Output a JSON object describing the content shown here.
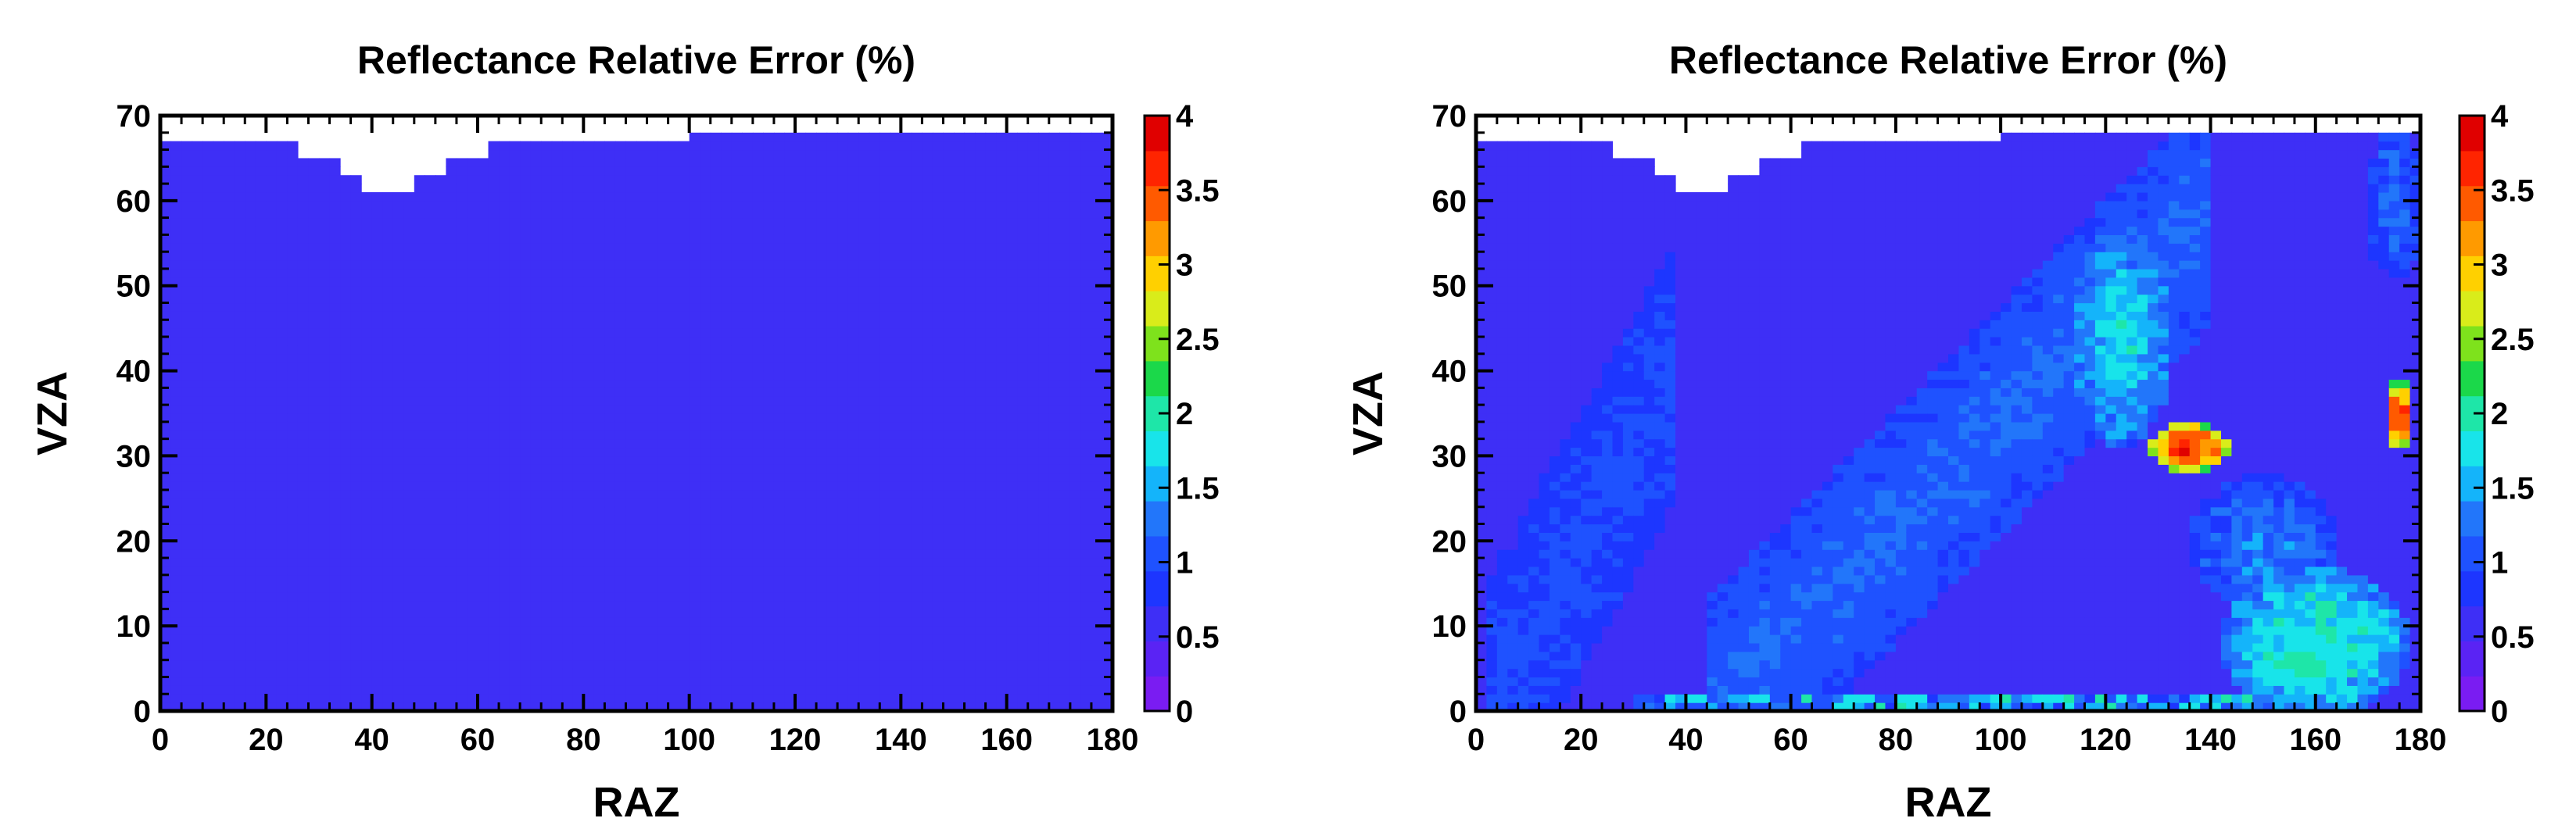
{
  "palette": [
    "#7a1cf2",
    "#5a23f4",
    "#3e2ff6",
    "#1d36ff",
    "#1f52ff",
    "#2276fa",
    "#14b4fa",
    "#18e4ea",
    "#1ee6a8",
    "#1bd84a",
    "#7ee21c",
    "#d9ec1a",
    "#ffd000",
    "#ff9a00",
    "#ff5a00",
    "#ff2400",
    "#e00000"
  ],
  "chart_data": [
    {
      "type": "heatmap",
      "title": "Reflectance Relative Error (%)",
      "xlabel": "RAZ",
      "ylabel": "VZA",
      "xlim": [
        0,
        180
      ],
      "ylim": [
        0,
        70
      ],
      "x_ticks": [
        "0",
        "20",
        "40",
        "60",
        "80",
        "100",
        "120",
        "140",
        "160",
        "180"
      ],
      "y_ticks": [
        "0",
        "10",
        "20",
        "30",
        "40",
        "50",
        "60",
        "70"
      ],
      "colorbar": {
        "range": [
          0,
          4
        ],
        "ticks": [
          "0",
          "0.5",
          "1",
          "1.5",
          "2",
          "2.5",
          "3",
          "3.5",
          "4"
        ]
      },
      "cell_size": [
        2,
        1
      ],
      "field": "uniform",
      "base_value": 0.65,
      "no_data_regions": [
        {
          "raz": [
            0,
            100
          ],
          "vza_above": 67
        },
        {
          "raz": [
            26,
            34
          ],
          "vza_above": 65
        },
        {
          "raz": [
            34,
            38
          ],
          "vza_above": 63
        },
        {
          "raz": [
            38,
            48
          ],
          "vza_above": 61
        },
        {
          "raz": [
            48,
            54
          ],
          "vza_above": 63
        },
        {
          "raz": [
            54,
            62
          ],
          "vza_above": 65
        },
        {
          "raz": [
            100,
            180
          ],
          "vza_above": 68
        }
      ]
    },
    {
      "type": "heatmap",
      "title": "Reflectance Relative Error (%)",
      "xlabel": "RAZ",
      "ylabel": "VZA",
      "xlim": [
        0,
        180
      ],
      "ylim": [
        0,
        70
      ],
      "x_ticks": [
        "0",
        "20",
        "40",
        "60",
        "80",
        "100",
        "120",
        "140",
        "160",
        "180"
      ],
      "y_ticks": [
        "0",
        "10",
        "20",
        "30",
        "40",
        "50",
        "60",
        "70"
      ],
      "colorbar": {
        "range": [
          0,
          4
        ],
        "ticks": [
          "0",
          "0.5",
          "1",
          "1.5",
          "2",
          "2.5",
          "3",
          "3.5",
          "4"
        ]
      },
      "cell_size": [
        2,
        1
      ],
      "field": "structured",
      "base_value": 0.65,
      "features": [
        {
          "kind": "band",
          "value": 1.05,
          "from_raz": 2,
          "to_raz": 38,
          "slope_vza_per_raz": 1.1,
          "width_raz": 14
        },
        {
          "kind": "band",
          "value": 1.2,
          "from_raz": 45,
          "to_raz": 140,
          "slope_vza_per_raz": 0.62,
          "width_raz": 22
        },
        {
          "kind": "blob",
          "value": 1.7,
          "center": [
            123,
            44
          ],
          "radius": [
            10,
            13
          ]
        },
        {
          "kind": "blob",
          "value": 3.6,
          "center": [
            136,
            31
          ],
          "radius": [
            8,
            3
          ]
        },
        {
          "kind": "blob",
          "value": 3.6,
          "center": [
            176,
            35
          ],
          "radius": [
            3,
            4
          ]
        },
        {
          "kind": "blob",
          "value": 1.9,
          "center": [
            160,
            8
          ],
          "radius": [
            18,
            9
          ]
        },
        {
          "kind": "blob",
          "value": 1.3,
          "center": [
            150,
            20
          ],
          "radius": [
            14,
            8
          ]
        },
        {
          "kind": "blob",
          "value": 1.2,
          "center": [
            175,
            60
          ],
          "radius": [
            6,
            10
          ]
        },
        {
          "kind": "strip",
          "value": 1.4,
          "vza": [
            0,
            2
          ],
          "raz": [
            30,
            150
          ]
        }
      ],
      "no_data_regions": [
        {
          "raz": [
            0,
            100
          ],
          "vza_above": 67
        },
        {
          "raz": [
            26,
            34
          ],
          "vza_above": 65
        },
        {
          "raz": [
            34,
            38
          ],
          "vza_above": 63
        },
        {
          "raz": [
            38,
            48
          ],
          "vza_above": 61
        },
        {
          "raz": [
            48,
            54
          ],
          "vza_above": 63
        },
        {
          "raz": [
            54,
            62
          ],
          "vza_above": 65
        },
        {
          "raz": [
            100,
            180
          ],
          "vza_above": 68
        }
      ]
    }
  ]
}
